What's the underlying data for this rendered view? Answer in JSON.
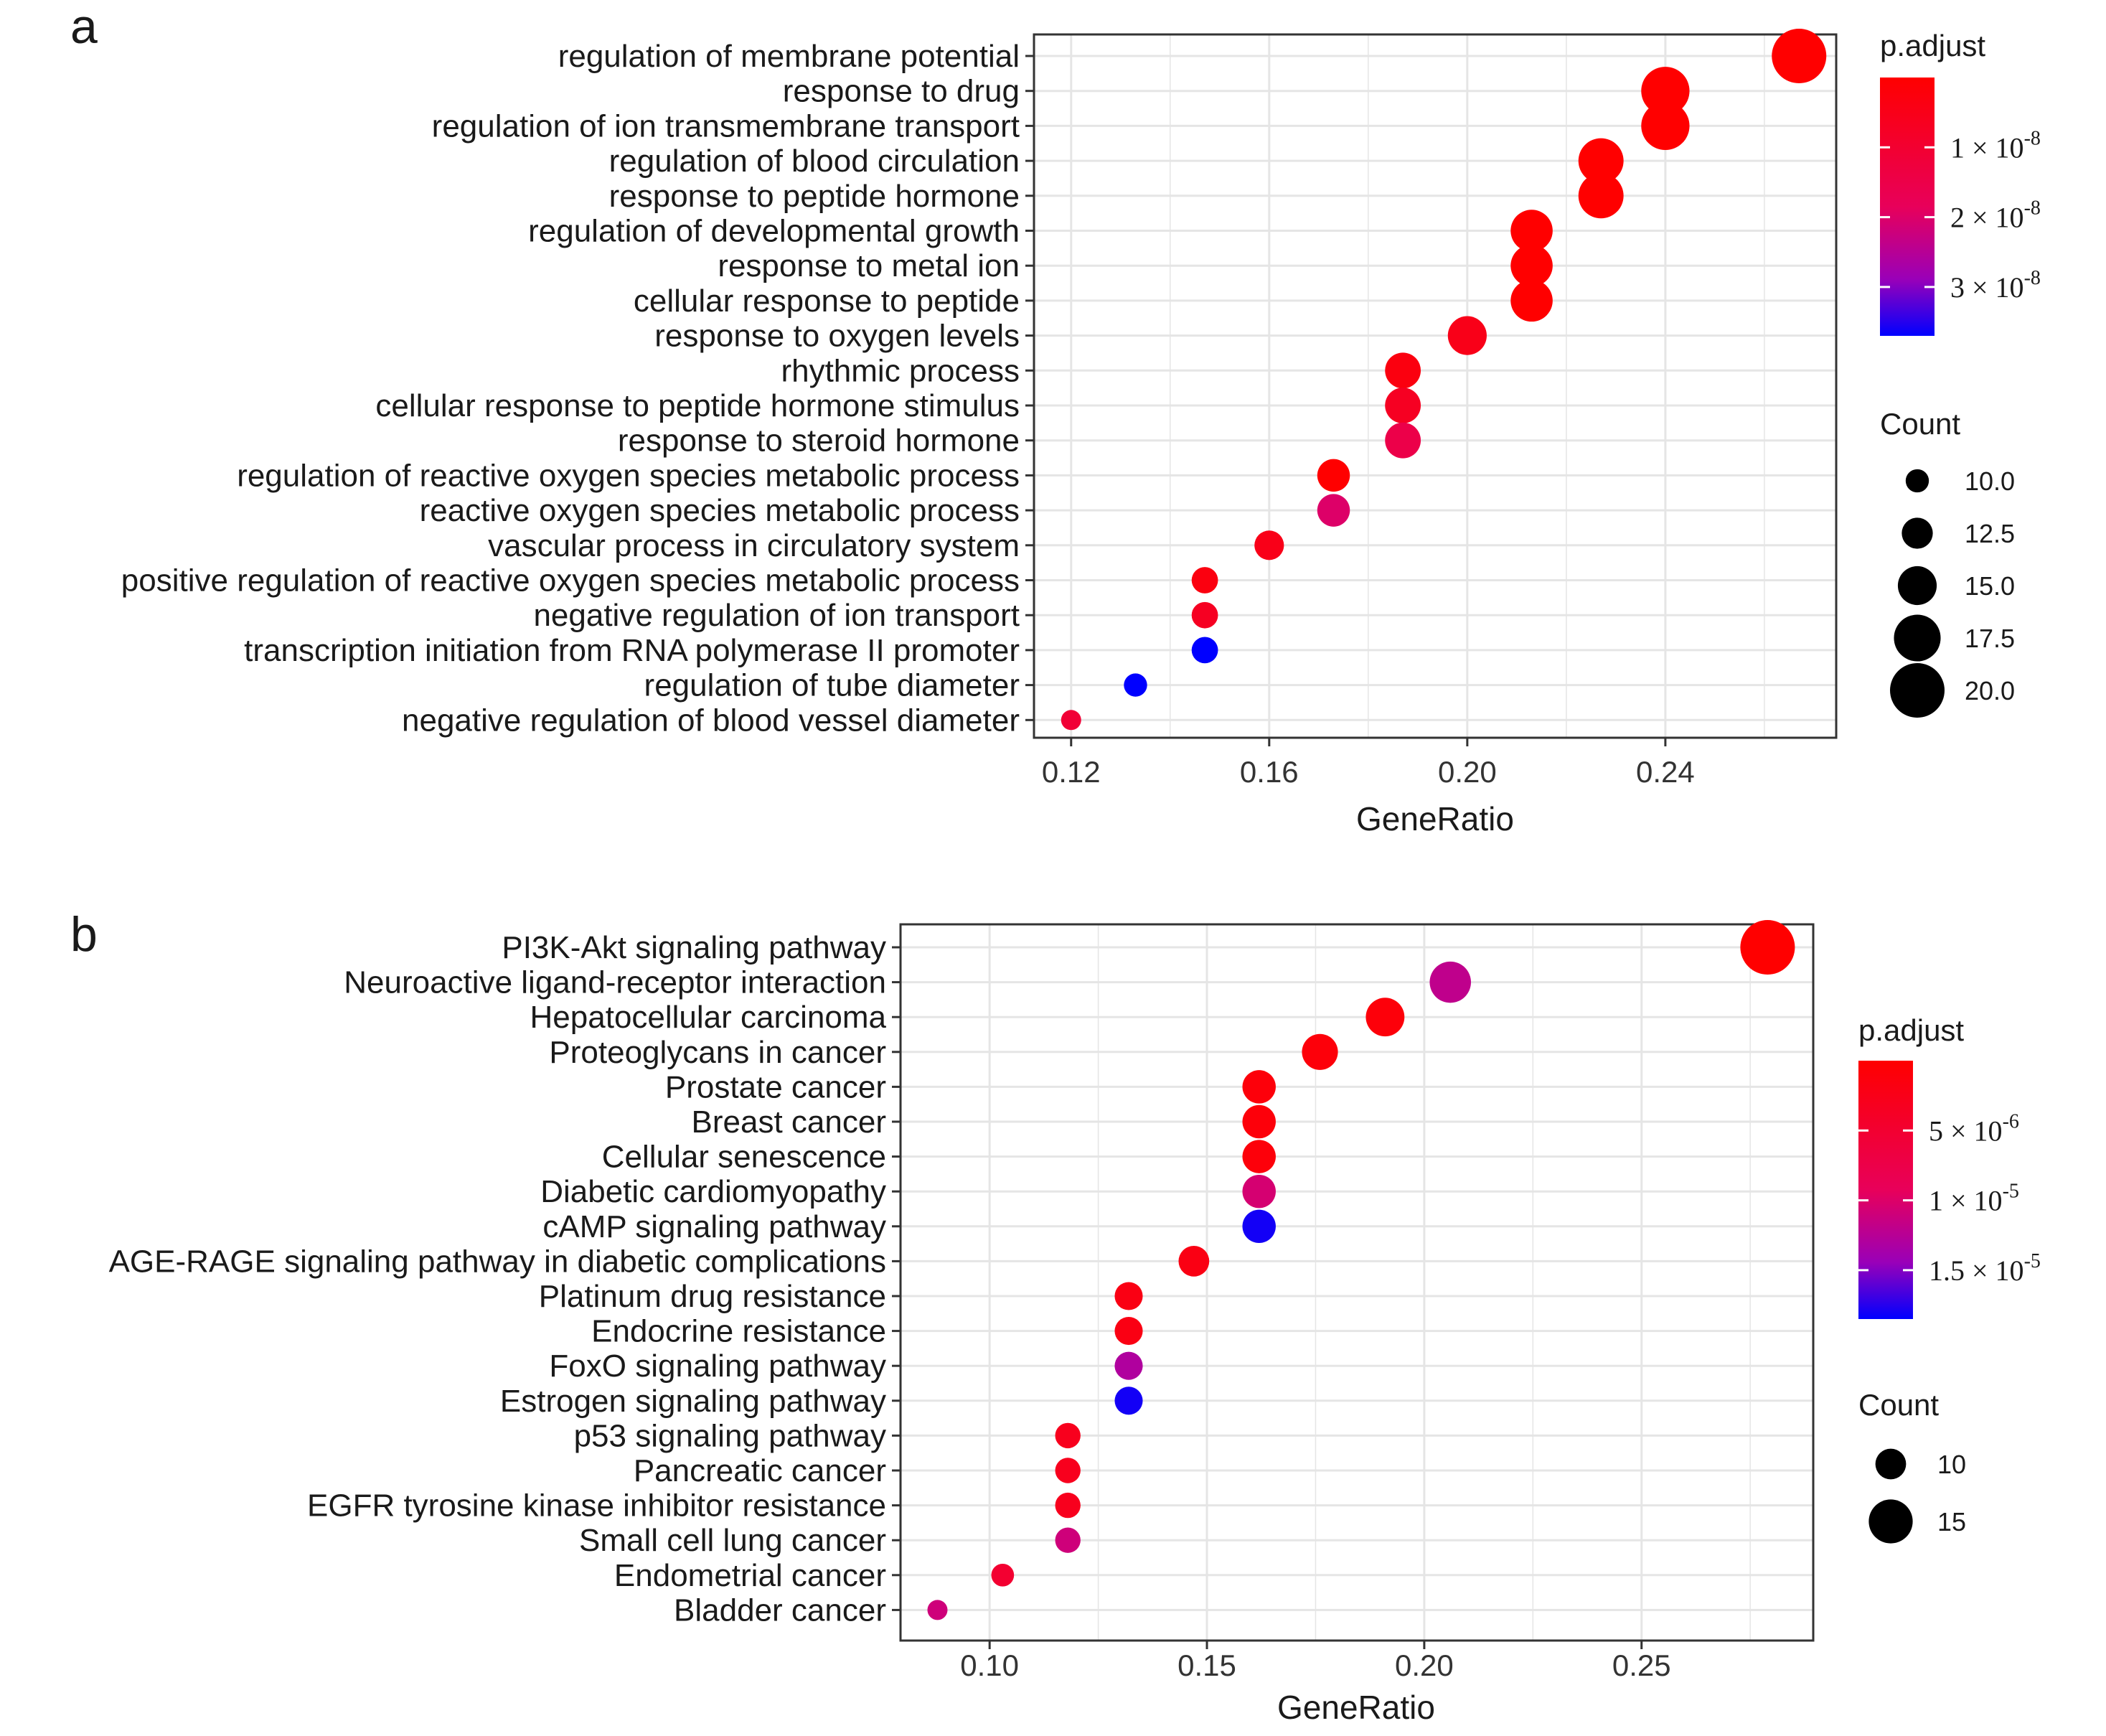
{
  "figure": {
    "panel_labels": [
      "a",
      "b"
    ]
  },
  "colors": {
    "low_p": "#ff0000",
    "high_p": "#0000ff",
    "grid": "#e5e5e5",
    "panel_border": "#333333"
  },
  "chart_data": [
    {
      "panel": "a",
      "type": "scatter",
      "subtype": "dot-plot",
      "xlabel": "GeneRatio",
      "ylabel": "",
      "x_ticks": [
        0.12,
        0.16,
        0.2,
        0.24
      ],
      "x_tick_labels": [
        "0.12",
        "0.16",
        "0.20",
        "0.24"
      ],
      "xlim": [
        0.1125,
        0.2745
      ],
      "grid": true,
      "categories": [
        "regulation of membrane potential",
        "response to drug",
        "regulation of ion transmembrane transport",
        "regulation of blood circulation",
        "response to peptide hormone",
        "regulation of developmental growth",
        "response to metal ion",
        "cellular response to peptide",
        "response to oxygen levels",
        "rhythmic process",
        "cellular response to peptide hormone stimulus",
        "response to steroid hormone",
        "regulation of reactive oxygen species metabolic process",
        "reactive oxygen species metabolic process",
        "vascular process in circulatory system",
        "positive regulation of reactive oxygen species metabolic process",
        "negative regulation of ion transport",
        "transcription initiation from RNA polymerase II promoter",
        "regulation of tube diameter",
        "negative regulation of blood vessel diameter"
      ],
      "x": [
        0.267,
        0.24,
        0.24,
        0.227,
        0.227,
        0.213,
        0.213,
        0.213,
        0.2,
        0.187,
        0.187,
        0.187,
        0.173,
        0.173,
        0.16,
        0.147,
        0.147,
        0.147,
        0.133,
        0.12
      ],
      "count": [
        20,
        18,
        18,
        17,
        17,
        16,
        16,
        16,
        15,
        14,
        14,
        14,
        13,
        13,
        12,
        11,
        11,
        11,
        10,
        9
      ],
      "p_adjust": [
        0.0,
        0.0,
        0.0,
        0.0,
        0.0,
        0.0,
        0.0,
        0.0,
        5e-09,
        3e-09,
        7e-09,
        1.5e-08,
        0.0,
        2e-08,
        5e-09,
        3e-09,
        7e-09,
        3.7e-08,
        3.7e-08,
        1.1e-08
      ],
      "legend": {
        "color_title": "p.adjust",
        "color_range": [
          0,
          3.7e-08
        ],
        "color_ticks": [
          1e-08,
          2e-08,
          3e-08
        ],
        "color_tick_labels": [
          "1 × 10",
          "2 × 10",
          "3 × 10"
        ],
        "color_tick_exponent": "-8",
        "size_title": "Count",
        "size_values": [
          10,
          12.5,
          15,
          17.5,
          20
        ],
        "size_labels": [
          "10.0",
          "12.5",
          "15.0",
          "17.5",
          "20.0"
        ],
        "placement": "right"
      }
    },
    {
      "panel": "b",
      "type": "scatter",
      "subtype": "dot-plot",
      "xlabel": "GeneRatio",
      "ylabel": "",
      "x_ticks": [
        0.1,
        0.15,
        0.2,
        0.25
      ],
      "x_tick_labels": [
        "0.10",
        "0.15",
        "0.20",
        "0.25"
      ],
      "xlim": [
        0.0795,
        0.2895
      ],
      "grid": true,
      "categories": [
        "PI3K-Akt signaling pathway",
        "Neuroactive ligand-receptor interaction",
        "Hepatocellular carcinoma",
        "Proteoglycans in cancer",
        "Prostate cancer",
        "Breast cancer",
        "Cellular senescence",
        "Diabetic cardiomyopathy",
        "cAMP signaling pathway",
        "AGE-RAGE signaling pathway in diabetic complications",
        "Platinum drug resistance",
        "Endocrine resistance",
        "FoxO signaling pathway",
        "Estrogen signaling pathway",
        "p53 signaling pathway",
        "Pancreatic cancer",
        "EGFR tyrosine kinase inhibitor resistance",
        "Small cell lung cancer",
        "Endometrial cancer",
        "Bladder cancer"
      ],
      "x": [
        0.279,
        0.206,
        0.191,
        0.176,
        0.162,
        0.162,
        0.162,
        0.162,
        0.162,
        0.147,
        0.132,
        0.132,
        0.132,
        0.132,
        0.118,
        0.118,
        0.118,
        0.118,
        0.103,
        0.088
      ],
      "count": [
        19,
        14,
        13,
        12,
        11,
        11,
        11,
        11,
        11,
        10,
        9,
        9,
        9,
        9,
        8,
        8,
        8,
        8,
        7,
        6
      ],
      "p_adjust": [
        0.0,
        1.2e-05,
        1e-06,
        1e-06,
        1e-06,
        1e-06,
        1e-06,
        1.05e-05,
        1.8e-05,
        2e-06,
        2e-06,
        2e-06,
        1.3e-05,
        1.8e-05,
        3e-06,
        3e-06,
        3e-06,
        1.1e-05,
        5e-06,
        1.1e-05
      ],
      "legend": {
        "color_title": "p.adjust",
        "color_range": [
          0,
          1.85e-05
        ],
        "color_ticks": [
          5e-06,
          1e-05,
          1.5e-05
        ],
        "color_tick_labels": [
          "5 × 10",
          "1 × 10",
          "1.5 × 10"
        ],
        "color_tick_exponents": [
          "-6",
          "-5",
          "-5"
        ],
        "size_title": "Count",
        "size_values": [
          10,
          15
        ],
        "size_labels": [
          "10",
          "15"
        ],
        "placement": "right"
      }
    }
  ]
}
